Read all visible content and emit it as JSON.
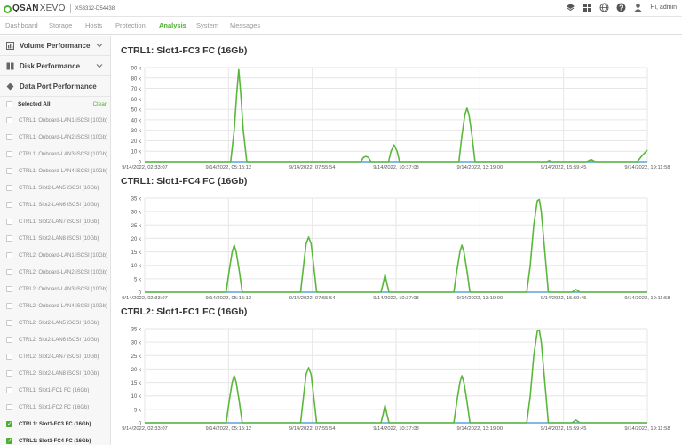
{
  "header": {
    "logo": "QSAN",
    "product": "XEVO",
    "serial": "XS3312-D54438",
    "user": "Hi, admin"
  },
  "icons": [
    "network-icon",
    "grid-icon",
    "globe-icon",
    "help-icon",
    "user-icon"
  ],
  "nav": {
    "tabs": [
      "Dashboard",
      "Storage",
      "Hosts",
      "Protection",
      "Analysis",
      "System",
      "Messages"
    ],
    "active": "Analysis"
  },
  "sidebar": {
    "sections": [
      {
        "title": "Volume Performance",
        "icon": "bar-chart-icon"
      },
      {
        "title": "Disk Performance",
        "icon": "disk-icon"
      },
      {
        "title": "Data Port Performance",
        "icon": "port-icon"
      }
    ],
    "select_all": "Selected All",
    "clear": "Clear",
    "items": [
      {
        "label": "CTRL1: Onboard-LAN1 iSCSI (10Gb)",
        "checked": false
      },
      {
        "label": "CTRL1: Onboard-LAN2 iSCSI (10Gb)",
        "checked": false
      },
      {
        "label": "CTRL1: Onboard-LAN3 iSCSI (10Gb)",
        "checked": false
      },
      {
        "label": "CTRL1: Onboard-LAN4 iSCSI (10Gb)",
        "checked": false
      },
      {
        "label": "CTRL1: Slot2-LAN5 iSCSI (10Gb)",
        "checked": false
      },
      {
        "label": "CTRL1: Slot2-LAN6 iSCSI (10Gb)",
        "checked": false
      },
      {
        "label": "CTRL1: Slot2-LAN7 iSCSI (10Gb)",
        "checked": false
      },
      {
        "label": "CTRL1: Slot2-LAN8 iSCSI (10Gb)",
        "checked": false
      },
      {
        "label": "CTRL2: Onboard-LAN1 iSCSI (10Gb)",
        "checked": false
      },
      {
        "label": "CTRL2: Onboard-LAN2 iSCSI (10Gb)",
        "checked": false
      },
      {
        "label": "CTRL2: Onboard-LAN3 iSCSI (10Gb)",
        "checked": false
      },
      {
        "label": "CTRL2: Onboard-LAN4 iSCSI (10Gb)",
        "checked": false
      },
      {
        "label": "CTRL2: Slot2-LAN5 iSCSI (10Gb)",
        "checked": false
      },
      {
        "label": "CTRL2: Slot2-LAN6 iSCSI (10Gb)",
        "checked": false
      },
      {
        "label": "CTRL2: Slot2-LAN7 iSCSI (10Gb)",
        "checked": false
      },
      {
        "label": "CTRL2: Slot2-LAN8 iSCSI (10Gb)",
        "checked": false
      },
      {
        "label": "CTRL1: Slot1-FC1 FC (16Gb)",
        "checked": false
      },
      {
        "label": "CTRL1: Slot1-FC2 FC (16Gb)",
        "checked": false
      },
      {
        "label": "CTRL1: Slot1-FC3 FC (16Gb)",
        "checked": true
      },
      {
        "label": "CTRL1: Slot1-FC4 FC (16Gb)",
        "checked": true
      }
    ]
  },
  "colors": {
    "accent": "#4caf2f",
    "line_green": "#5ab83a",
    "line_blue": "#3a8fd0"
  },
  "chart_data": [
    {
      "type": "line",
      "title": "CTRL1: Slot1-FC3 FC (16Gb)",
      "ylim": [
        0,
        90000
      ],
      "yticks": [
        "0",
        "10 k",
        "20 k",
        "30 k",
        "40 k",
        "50 k",
        "60 k",
        "70 k",
        "80 k",
        "90 k"
      ],
      "xticks": [
        "9/14/2022, 02:33:07",
        "9/14/2022, 05:15:12",
        "9/14/2022, 07:55:54",
        "9/14/2022, 10:37:08",
        "9/14/2022, 13:19:00",
        "9/14/2022, 15:59:45",
        "9/14/2022, 19:11:58"
      ],
      "series": [
        {
          "color": "#5ab83a",
          "points": [
            [
              0,
              0
            ],
            [
              0.171,
              0
            ],
            [
              0.178,
              30000
            ],
            [
              0.183,
              65000
            ],
            [
              0.187,
              88000
            ],
            [
              0.191,
              65000
            ],
            [
              0.196,
              30000
            ],
            [
              0.203,
              0
            ],
            [
              0.43,
              0
            ],
            [
              0.435,
              4000
            ],
            [
              0.44,
              5000
            ],
            [
              0.445,
              4000
            ],
            [
              0.45,
              0
            ],
            [
              0.485,
              0
            ],
            [
              0.49,
              10000
            ],
            [
              0.496,
              16000
            ],
            [
              0.502,
              10000
            ],
            [
              0.507,
              0
            ],
            [
              0.625,
              0
            ],
            [
              0.631,
              25000
            ],
            [
              0.637,
              45000
            ],
            [
              0.641,
              51000
            ],
            [
              0.645,
              45000
            ],
            [
              0.651,
              25000
            ],
            [
              0.657,
              0
            ],
            [
              0.8,
              0
            ],
            [
              0.805,
              1000
            ],
            [
              0.81,
              0
            ],
            [
              0.88,
              0
            ],
            [
              0.888,
              2000
            ],
            [
              0.896,
              0
            ],
            [
              0.98,
              0
            ],
            [
              0.99,
              6000
            ],
            [
              1.0,
              11000
            ]
          ]
        },
        {
          "color": "#3a8fd0",
          "points": [
            [
              0,
              0
            ],
            [
              1,
              0
            ]
          ]
        }
      ]
    },
    {
      "type": "line",
      "title": "CTRL1: Slot1-FC4 FC (16Gb)",
      "ylim": [
        0,
        35000
      ],
      "yticks": [
        "0",
        "5 k",
        "10 k",
        "15 k",
        "20 k",
        "25 k",
        "30 k",
        "35 k"
      ],
      "xticks": [
        "9/14/2022, 02:33:07",
        "9/14/2022, 05:15:12",
        "9/14/2022, 07:55:54",
        "9/14/2022, 10:37:08",
        "9/14/2022, 13:19:00",
        "9/14/2022, 15:59:45",
        "9/14/2022, 19:11:58"
      ],
      "series": [
        {
          "color": "#5ab83a",
          "points": [
            [
              0,
              0
            ],
            [
              0.162,
              0
            ],
            [
              0.168,
              8000
            ],
            [
              0.174,
              15000
            ],
            [
              0.178,
              17500
            ],
            [
              0.182,
              15000
            ],
            [
              0.188,
              8000
            ],
            [
              0.194,
              0
            ],
            [
              0.31,
              0
            ],
            [
              0.316,
              10000
            ],
            [
              0.321,
              18000
            ],
            [
              0.326,
              20500
            ],
            [
              0.331,
              18000
            ],
            [
              0.336,
              10000
            ],
            [
              0.342,
              0
            ],
            [
              0.47,
              0
            ],
            [
              0.474,
              3000
            ],
            [
              0.478,
              6500
            ],
            [
              0.482,
              3000
            ],
            [
              0.486,
              0
            ],
            [
              0.615,
              0
            ],
            [
              0.621,
              8000
            ],
            [
              0.627,
              15000
            ],
            [
              0.631,
              17500
            ],
            [
              0.635,
              15000
            ],
            [
              0.641,
              8000
            ],
            [
              0.647,
              0
            ],
            [
              0.76,
              0
            ],
            [
              0.767,
              10000
            ],
            [
              0.774,
              25000
            ],
            [
              0.781,
              34000
            ],
            [
              0.785,
              34500
            ],
            [
              0.789,
              30000
            ],
            [
              0.796,
              15000
            ],
            [
              0.803,
              0
            ],
            [
              0.85,
              0
            ],
            [
              0.858,
              1000
            ],
            [
              0.866,
              0
            ],
            [
              1,
              0
            ]
          ]
        },
        {
          "color": "#3a8fd0",
          "points": [
            [
              0,
              0
            ],
            [
              1,
              0
            ]
          ]
        }
      ]
    },
    {
      "type": "line",
      "title": "CTRL2: Slot1-FC1 FC (16Gb)",
      "ylim": [
        0,
        35000
      ],
      "yticks": [
        "0",
        "5 k",
        "10 k",
        "15 k",
        "20 k",
        "25 k",
        "30 k",
        "35 k"
      ],
      "xticks": [
        "9/14/2022, 02:33:07",
        "9/14/2022, 05:15:12",
        "9/14/2022, 07:55:54",
        "9/14/2022, 10:37:08",
        "9/14/2022, 13:19:00",
        "9/14/2022, 15:59:45",
        "9/14/2022, 19:11:58"
      ],
      "series": [
        {
          "color": "#5ab83a",
          "points": [
            [
              0,
              0
            ],
            [
              0.162,
              0
            ],
            [
              0.168,
              8000
            ],
            [
              0.174,
              15000
            ],
            [
              0.178,
              17500
            ],
            [
              0.182,
              15000
            ],
            [
              0.188,
              8000
            ],
            [
              0.194,
              0
            ],
            [
              0.31,
              0
            ],
            [
              0.316,
              10000
            ],
            [
              0.321,
              18000
            ],
            [
              0.326,
              20500
            ],
            [
              0.331,
              18000
            ],
            [
              0.336,
              10000
            ],
            [
              0.342,
              0
            ],
            [
              0.47,
              0
            ],
            [
              0.474,
              3000
            ],
            [
              0.478,
              6500
            ],
            [
              0.482,
              3000
            ],
            [
              0.486,
              0
            ],
            [
              0.615,
              0
            ],
            [
              0.621,
              8000
            ],
            [
              0.627,
              15000
            ],
            [
              0.631,
              17500
            ],
            [
              0.635,
              15000
            ],
            [
              0.641,
              8000
            ],
            [
              0.647,
              0
            ],
            [
              0.76,
              0
            ],
            [
              0.767,
              10000
            ],
            [
              0.774,
              25000
            ],
            [
              0.781,
              34000
            ],
            [
              0.785,
              34500
            ],
            [
              0.789,
              30000
            ],
            [
              0.796,
              15000
            ],
            [
              0.803,
              0
            ],
            [
              0.85,
              0
            ],
            [
              0.858,
              1000
            ],
            [
              0.866,
              0
            ],
            [
              1,
              0
            ]
          ]
        },
        {
          "color": "#3a8fd0",
          "points": [
            [
              0,
              0
            ],
            [
              1,
              0
            ]
          ]
        }
      ]
    }
  ]
}
